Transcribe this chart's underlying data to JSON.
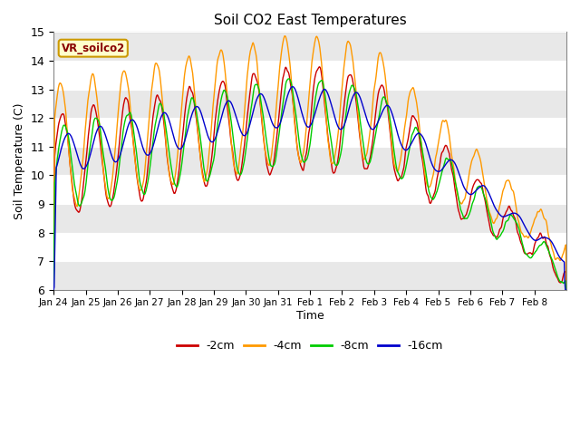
{
  "title": "Soil CO2 East Temperatures",
  "xlabel": "Time",
  "ylabel": "Soil Temperature (C)",
  "ylim": [
    6.0,
    15.0
  ],
  "yticks": [
    6.0,
    7.0,
    8.0,
    9.0,
    10.0,
    11.0,
    12.0,
    13.0,
    14.0,
    15.0
  ],
  "legend_label": "VR_soilco2",
  "line_labels": [
    "-2cm",
    "-4cm",
    "-8cm",
    "-16cm"
  ],
  "line_colors": [
    "#cc0000",
    "#ff9900",
    "#00cc00",
    "#0000cc"
  ],
  "bg_color": "#ffffff",
  "xtick_labels": [
    "Jan 24",
    "Jan 25",
    "Jan 26",
    "Jan 27",
    "Jan 28",
    "Jan 29",
    "Jan 30",
    "Jan 31",
    "Feb 1",
    "Feb 2",
    "Feb 3",
    "Feb 4",
    "Feb 5",
    "Feb 6",
    "Feb 7",
    "Feb 8"
  ],
  "n_points": 960,
  "seed": 7
}
